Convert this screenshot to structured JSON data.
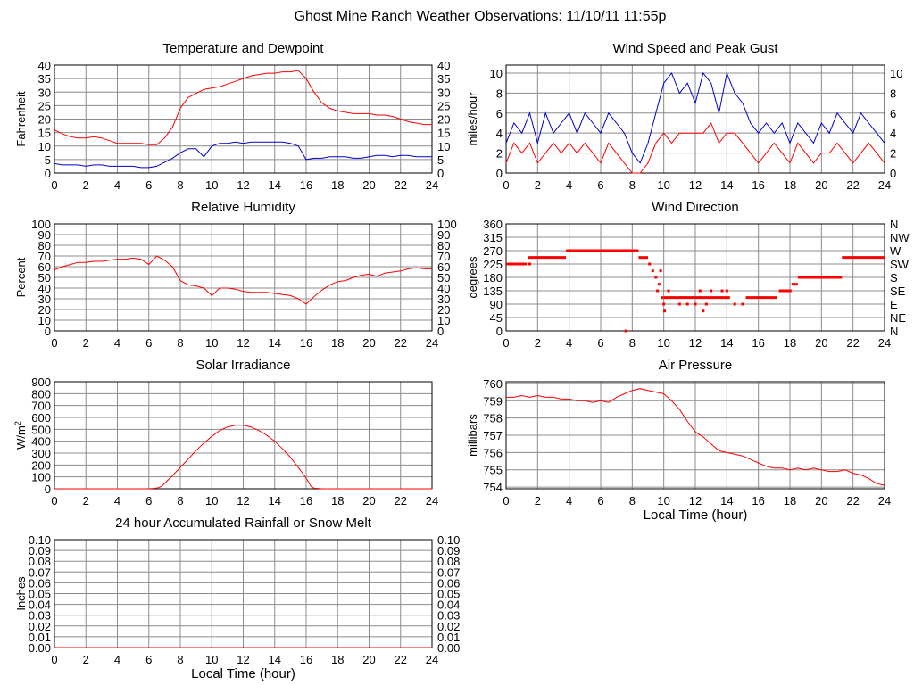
{
  "page_title": "Ghost Mine Ranch Weather Observations: 11/10/11 11:55p",
  "chart_data": [
    {
      "id": "temperature",
      "type": "line",
      "title": "Temperature and Dewpoint",
      "ylabel": "Fahrenheit",
      "xlabel": "",
      "xlim": [
        0,
        24
      ],
      "ylim": [
        0,
        40
      ],
      "xticks": [
        0,
        2,
        4,
        6,
        8,
        10,
        12,
        14,
        16,
        18,
        20,
        22,
        24
      ],
      "yticks": [
        0,
        5,
        10,
        15,
        20,
        25,
        30,
        35,
        40
      ],
      "right_ticks": true,
      "grid": true,
      "series": [
        {
          "color": "#ff0000",
          "x": [
            0,
            0.5,
            1,
            1.5,
            2,
            2.5,
            3,
            3.5,
            4,
            4.5,
            5,
            5.5,
            6,
            6.5,
            7,
            7.5,
            8,
            8.5,
            9,
            9.5,
            10,
            10.5,
            11,
            11.5,
            12,
            12.5,
            13,
            13.5,
            14,
            14.5,
            15,
            15.5,
            16,
            16.5,
            17,
            17.5,
            18,
            18.5,
            19,
            19.5,
            20,
            20.5,
            21,
            21.5,
            22,
            22.5,
            23,
            23.5,
            24
          ],
          "values": [
            16,
            14.5,
            13.5,
            13,
            13,
            13.5,
            13,
            12,
            11,
            11,
            11,
            11,
            10.5,
            10.5,
            13,
            17,
            24,
            28,
            29.5,
            31,
            31.5,
            32,
            33,
            34,
            35,
            36,
            36.5,
            37,
            37,
            37.5,
            37.5,
            38,
            35,
            30,
            26,
            24,
            23,
            22.5,
            22,
            22,
            22,
            21.5,
            21.5,
            21,
            20,
            19,
            18.5,
            18,
            18
          ]
        },
        {
          "color": "#0000cc",
          "x": [
            0,
            0.5,
            1,
            1.5,
            2,
            2.5,
            3,
            3.5,
            4,
            4.5,
            5,
            5.5,
            6,
            6.5,
            7,
            7.5,
            8,
            8.5,
            9,
            9.5,
            10,
            10.5,
            11,
            11.5,
            12,
            12.5,
            13,
            13.5,
            14,
            14.5,
            15,
            15.5,
            16,
            16.5,
            17,
            17.5,
            18,
            18.5,
            19,
            19.5,
            20,
            20.5,
            21,
            21.5,
            22,
            22.5,
            23,
            23.5,
            24
          ],
          "values": [
            3.5,
            3,
            3,
            3,
            2.5,
            3,
            3,
            2.5,
            2.5,
            2.5,
            2.5,
            2,
            2,
            2.5,
            4,
            5.5,
            7.5,
            9,
            9,
            6,
            10,
            11,
            11,
            11.5,
            11,
            11.5,
            11.5,
            11.5,
            11.5,
            11.5,
            11,
            10,
            5,
            5.5,
            5.5,
            6,
            6,
            6,
            5.5,
            5.5,
            6,
            6.5,
            6.5,
            6,
            6.5,
            6.5,
            6,
            6,
            6
          ]
        }
      ]
    },
    {
      "id": "wind-speed",
      "type": "line",
      "title": "Wind Speed and Peak Gust",
      "ylabel": "miles/hour",
      "xlabel": "",
      "xlim": [
        0,
        24
      ],
      "ylim": [
        0,
        10.8
      ],
      "xticks": [
        0,
        2,
        4,
        6,
        8,
        10,
        12,
        14,
        16,
        18,
        20,
        22,
        24
      ],
      "yticks": [
        0,
        2,
        4,
        6,
        8,
        10
      ],
      "right_ticks": true,
      "grid": true,
      "series": [
        {
          "color": "#0000cc",
          "x": [
            0,
            0.5,
            1,
            1.5,
            2,
            2.5,
            3,
            3.5,
            4,
            4.5,
            5,
            5.5,
            6,
            6.5,
            7,
            7.5,
            8,
            8.5,
            9,
            9.5,
            10,
            10.5,
            11,
            11.5,
            12,
            12.5,
            13,
            13.5,
            14,
            14.5,
            15,
            15.5,
            16,
            16.5,
            17,
            17.5,
            18,
            18.5,
            19,
            19.5,
            20,
            20.5,
            21,
            21.5,
            22,
            22.5,
            23,
            23.5,
            24
          ],
          "values": [
            3,
            5,
            4,
            6,
            3,
            6,
            4,
            5,
            6,
            4,
            6,
            5,
            4,
            6,
            5,
            4,
            2,
            1,
            3,
            6,
            9,
            10,
            8,
            9,
            7,
            10,
            9,
            6,
            10,
            8,
            7,
            5,
            4,
            5,
            4,
            5,
            3,
            5,
            4,
            3,
            5,
            4,
            6,
            5,
            4,
            6,
            5,
            4,
            3
          ]
        },
        {
          "color": "#ff0000",
          "x": [
            0,
            0.5,
            1,
            1.5,
            2,
            2.5,
            3,
            3.5,
            4,
            4.5,
            5,
            5.5,
            6,
            6.5,
            7,
            7.5,
            8,
            8.5,
            9,
            9.5,
            10,
            10.5,
            11,
            11.5,
            12,
            12.5,
            13,
            13.5,
            14,
            14.5,
            15,
            15.5,
            16,
            16.5,
            17,
            17.5,
            18,
            18.5,
            19,
            19.5,
            20,
            20.5,
            21,
            21.5,
            22,
            22.5,
            23,
            23.5,
            24
          ],
          "values": [
            1,
            3,
            2,
            3,
            1,
            2,
            3,
            2,
            3,
            2,
            3,
            2,
            1,
            3,
            2,
            1,
            0,
            0,
            1,
            3,
            4,
            3,
            4,
            4,
            4,
            4,
            5,
            3,
            4,
            4,
            3,
            2,
            1,
            2,
            3,
            2,
            1,
            3,
            2,
            1,
            2,
            2,
            3,
            2,
            1,
            2,
            3,
            2,
            1
          ]
        }
      ]
    },
    {
      "id": "humidity",
      "type": "line",
      "title": "Relative Humidity",
      "ylabel": "Percent",
      "xlabel": "",
      "xlim": [
        0,
        24
      ],
      "ylim": [
        0,
        100
      ],
      "xticks": [
        0,
        2,
        4,
        6,
        8,
        10,
        12,
        14,
        16,
        18,
        20,
        22,
        24
      ],
      "yticks": [
        0,
        10,
        20,
        30,
        40,
        50,
        60,
        70,
        80,
        90,
        100
      ],
      "right_ticks": true,
      "grid": true,
      "series": [
        {
          "color": "#ff0000",
          "x": [
            0,
            0.5,
            1,
            1.5,
            2,
            2.5,
            3,
            3.5,
            4,
            4.5,
            5,
            5.5,
            6,
            6.5,
            7,
            7.5,
            8,
            8.5,
            9,
            9.5,
            10,
            10.5,
            11,
            11.5,
            12,
            12.5,
            13,
            13.5,
            14,
            14.5,
            15,
            15.5,
            16,
            16.5,
            17,
            17.5,
            18,
            18.5,
            19,
            19.5,
            20,
            20.5,
            21,
            21.5,
            22,
            22.5,
            23,
            23.5,
            24
          ],
          "values": [
            57,
            60,
            62,
            64,
            64,
            65,
            65,
            66,
            67,
            67,
            68,
            67,
            62,
            70,
            66,
            60,
            47,
            43,
            42,
            40,
            33,
            40,
            40,
            39,
            37,
            36,
            36,
            36,
            35,
            34,
            33,
            30,
            25,
            32,
            38,
            43,
            46,
            47,
            50,
            52,
            53,
            51,
            54,
            55,
            56,
            58,
            59,
            58,
            58
          ]
        }
      ]
    },
    {
      "id": "wind-direction",
      "type": "scatter",
      "title": "Wind Direction",
      "ylabel": "degrees",
      "xlabel": "",
      "xlim": [
        0,
        24
      ],
      "ylim": [
        0,
        360
      ],
      "xticks": [
        0,
        2,
        4,
        6,
        8,
        10,
        12,
        14,
        16,
        18,
        20,
        22,
        24
      ],
      "yticks": [
        0,
        45,
        90,
        135,
        180,
        225,
        270,
        315,
        360
      ],
      "right_labels": [
        "N",
        "NE",
        "E",
        "SE",
        "S",
        "SW",
        "W",
        "NW",
        "N"
      ],
      "grid": true,
      "series": [
        {
          "color": "#ff0000",
          "segments": [
            [
              0,
              1.3,
              225
            ],
            [
              1.4,
              1.7,
              247
            ],
            [
              1.7,
              3.8,
              247
            ],
            [
              3.8,
              8.4,
              270
            ],
            [
              8.4,
              9.0,
              247
            ],
            [
              10.0,
              12.0,
              112
            ],
            [
              12.0,
              14.2,
              112
            ],
            [
              15.2,
              17.2,
              112
            ],
            [
              17.3,
              18.1,
              135
            ],
            [
              18.1,
              18.5,
              157
            ],
            [
              18.5,
              21.3,
              180
            ],
            [
              21.3,
              24,
              247
            ]
          ],
          "points": [
            [
              1.5,
              225
            ],
            [
              7.6,
              0
            ],
            [
              9.1,
              225
            ],
            [
              9.3,
              202
            ],
            [
              9.5,
              180
            ],
            [
              9.6,
              135
            ],
            [
              9.7,
              157
            ],
            [
              9.8,
              202
            ],
            [
              9.9,
              112
            ],
            [
              10.0,
              90
            ],
            [
              10.05,
              67
            ],
            [
              10.3,
              135
            ],
            [
              11.0,
              90
            ],
            [
              11.5,
              90
            ],
            [
              12.0,
              90
            ],
            [
              12.3,
              135
            ],
            [
              12.5,
              67
            ],
            [
              12.7,
              90
            ],
            [
              13.0,
              135
            ],
            [
              13.7,
              135
            ],
            [
              14.0,
              135
            ],
            [
              14.5,
              90
            ],
            [
              15.0,
              90
            ]
          ]
        }
      ]
    },
    {
      "id": "solar",
      "type": "line",
      "title": "Solar Irradiance",
      "ylabel": "W/m2",
      "xlabel": "",
      "xlim": [
        0,
        24
      ],
      "ylim": [
        0,
        900
      ],
      "xticks": [
        0,
        2,
        4,
        6,
        8,
        10,
        12,
        14,
        16,
        18,
        20,
        22,
        24
      ],
      "yticks": [
        0,
        100,
        200,
        300,
        400,
        500,
        600,
        700,
        800,
        900
      ],
      "right_ticks": false,
      "grid": true,
      "series": [
        {
          "color": "#ff0000",
          "x": [
            0,
            2,
            4,
            6,
            6.5,
            6.8,
            7,
            7.5,
            8,
            8.5,
            9,
            9.5,
            10,
            10.5,
            11,
            11.5,
            12,
            12.5,
            13,
            13.5,
            14,
            14.5,
            15,
            15.5,
            16,
            16.3,
            16.5,
            17,
            18,
            20,
            22,
            24
          ],
          "values": [
            0,
            0,
            0,
            0,
            5,
            20,
            45,
            110,
            180,
            250,
            320,
            385,
            440,
            490,
            520,
            535,
            535,
            520,
            490,
            450,
            400,
            335,
            265,
            180,
            90,
            20,
            5,
            0,
            0,
            0,
            0,
            0
          ]
        }
      ]
    },
    {
      "id": "pressure",
      "type": "line",
      "title": "Air Pressure",
      "ylabel": "millibars",
      "xlabel": "Local Time (hour)",
      "xlim": [
        0,
        24
      ],
      "ylim": [
        753.9,
        760.1
      ],
      "xticks": [
        0,
        2,
        4,
        6,
        8,
        10,
        12,
        14,
        16,
        18,
        20,
        22,
        24
      ],
      "yticks": [
        754,
        755,
        756,
        757,
        758,
        759,
        760
      ],
      "right_ticks": false,
      "grid": true,
      "series": [
        {
          "color": "#ff0000",
          "x": [
            0,
            0.5,
            1,
            1.5,
            2,
            2.5,
            3,
            3.5,
            4,
            4.5,
            5,
            5.5,
            6,
            6.5,
            7,
            7.5,
            8,
            8.5,
            9,
            9.5,
            10,
            10.5,
            11,
            11.5,
            12,
            12.5,
            13,
            13.5,
            14,
            14.5,
            15,
            15.5,
            16,
            16.5,
            17,
            17.5,
            18,
            18.5,
            19,
            19.5,
            20,
            20.5,
            21,
            21.5,
            22,
            22.5,
            23,
            23.5,
            24
          ],
          "values": [
            759.2,
            759.2,
            759.3,
            759.2,
            759.3,
            759.2,
            759.2,
            759.1,
            759.1,
            759.0,
            759.0,
            758.9,
            759.0,
            758.9,
            759.2,
            759.4,
            759.6,
            759.7,
            759.6,
            759.5,
            759.4,
            759.0,
            758.5,
            757.8,
            757.2,
            756.9,
            756.5,
            756.1,
            756.0,
            755.9,
            755.8,
            755.6,
            755.4,
            755.2,
            755.1,
            755.1,
            755.0,
            755.1,
            755.0,
            755.1,
            755.0,
            754.9,
            754.9,
            755.0,
            754.8,
            754.7,
            754.5,
            754.2,
            754.1
          ]
        }
      ]
    },
    {
      "id": "rainfall",
      "type": "line",
      "title": "24 hour Accumulated Rainfall or Snow Melt",
      "ylabel": "Inches",
      "xlabel": "Local Time (hour)",
      "xlim": [
        0,
        24
      ],
      "ylim": [
        0,
        0.1
      ],
      "xticks": [
        0,
        2,
        4,
        6,
        8,
        10,
        12,
        14,
        16,
        18,
        20,
        22,
        24
      ],
      "yticks": [
        0,
        0.01,
        0.02,
        0.03,
        0.04,
        0.05,
        0.06,
        0.07,
        0.08,
        0.09,
        0.1
      ],
      "ytick_labels": [
        "0.00",
        "0.01",
        "0.02",
        "0.03",
        "0.04",
        "0.05",
        "0.06",
        "0.07",
        "0.08",
        "0.09",
        "0.10"
      ],
      "right_ticks": true,
      "grid": true,
      "series": [
        {
          "color": "#ff0000",
          "x": [
            0,
            24
          ],
          "values": [
            0,
            0
          ]
        }
      ]
    }
  ]
}
